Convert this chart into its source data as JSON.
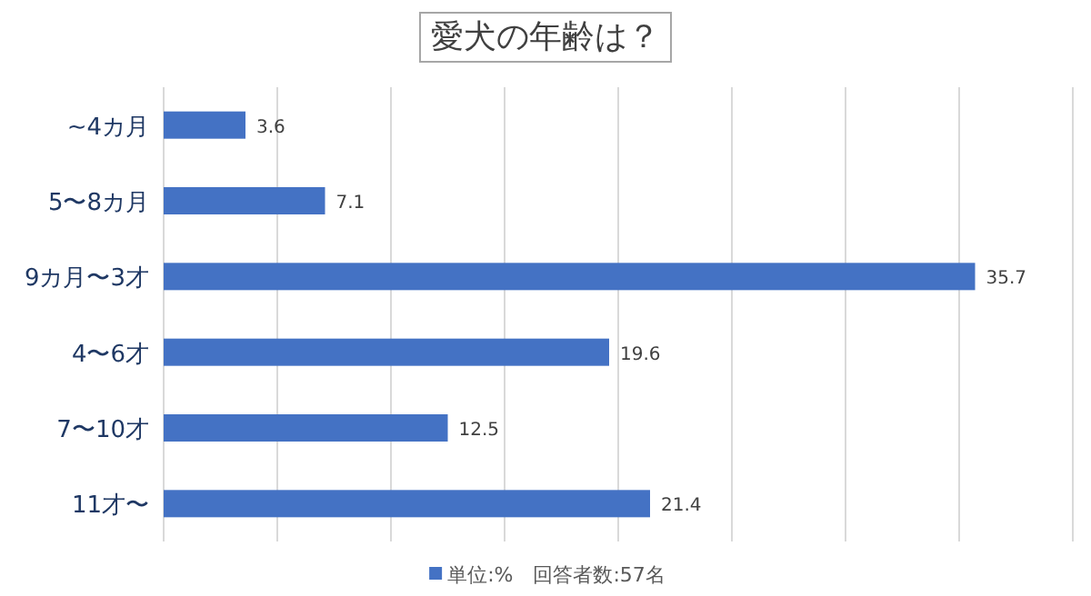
{
  "chart_data": {
    "type": "bar",
    "orientation": "horizontal",
    "title": "愛犬の年齢は？",
    "categories": [
      "~4カ月",
      "5〜8カ月",
      "9カ月〜3才",
      "4〜6才",
      "7〜10才",
      "11才〜"
    ],
    "series": [
      {
        "name": "単位:%　回答者数:57名",
        "color": "#4472c4",
        "values": [
          3.6,
          7.1,
          35.7,
          19.6,
          12.5,
          21.4
        ]
      }
    ],
    "xlim": [
      0,
      40
    ],
    "xticks": [
      {
        "value": 0,
        "label": null
      },
      {
        "value": 5,
        "label": null
      },
      {
        "value": 10,
        "label": null
      },
      {
        "value": 15,
        "label": null
      },
      {
        "value": 20,
        "label": null
      },
      {
        "value": 25,
        "label": null
      },
      {
        "value": 30,
        "label": null
      },
      {
        "value": 35,
        "label": null
      },
      {
        "value": 40,
        "label": null
      }
    ],
    "tick_labels": "y",
    "grid": "x",
    "data_labels": true,
    "legend": "bottom"
  }
}
